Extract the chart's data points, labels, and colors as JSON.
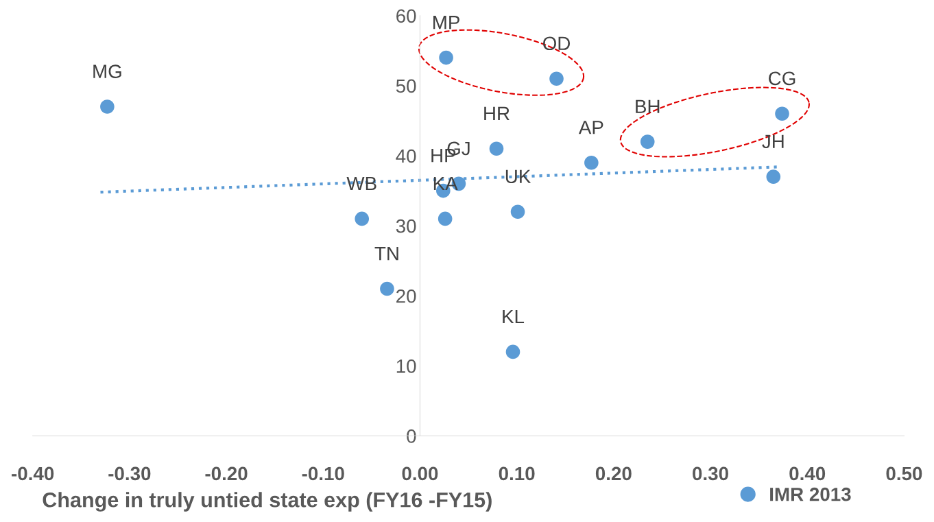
{
  "chart_data": {
    "type": "scatter",
    "xlabel": "Change in truly untied state exp (FY16 -FY15)",
    "xlim": [
      -0.4,
      0.5
    ],
    "xticks": [
      {
        "value": -0.4,
        "label": "-0.40"
      },
      {
        "value": -0.3,
        "label": "-0.30"
      },
      {
        "value": -0.2,
        "label": "-0.20"
      },
      {
        "value": -0.1,
        "label": "-0.10"
      },
      {
        "value": 0,
        "label": "0.00"
      },
      {
        "value": 0.1,
        "label": "0.10"
      },
      {
        "value": 0.2,
        "label": "0.20"
      },
      {
        "value": 0.3,
        "label": "0.30"
      },
      {
        "value": 0.4,
        "label": "0.40"
      },
      {
        "value": 0.5,
        "label": "0.50"
      }
    ],
    "ylim": [
      0,
      60
    ],
    "yticks": [
      0,
      10,
      20,
      30,
      40,
      50,
      60
    ],
    "grid": false,
    "legend": "bottom right",
    "series": [
      {
        "name": "IMR 2013",
        "marker": "circle",
        "color": "#5b9bd5",
        "x": [
          -0.323,
          0.027,
          0.141,
          0.374,
          0.235,
          0.365,
          0.177,
          0.079,
          0.04,
          0.024,
          0.026,
          0.101,
          -0.06,
          -0.034,
          0.096
        ],
        "values": [
          47,
          54,
          51,
          46,
          42,
          37,
          39,
          41,
          36,
          35,
          31,
          32,
          31,
          21,
          12
        ]
      },
      {
        "type": "line",
        "marker": "none",
        "line_style": "dotted",
        "color": "#5b9bd5",
        "x": [
          -0.33,
          0.37
        ],
        "values": [
          34.8,
          38.4
        ]
      }
    ],
    "annotations": [
      {
        "text": "MG",
        "x": -0.323,
        "y": 47
      },
      {
        "text": "MP",
        "x": 0.027,
        "y": 54
      },
      {
        "text": "OD",
        "x": 0.141,
        "y": 51
      },
      {
        "text": "CG",
        "x": 0.374,
        "y": 46
      },
      {
        "text": "BH",
        "x": 0.235,
        "y": 42
      },
      {
        "text": "JH",
        "x": 0.365,
        "y": 37
      },
      {
        "text": "AP",
        "x": 0.177,
        "y": 39
      },
      {
        "text": "HR",
        "x": 0.079,
        "y": 41
      },
      {
        "text": "GJ",
        "x": 0.04,
        "y": 36
      },
      {
        "text": "HP",
        "x": 0.024,
        "y": 35
      },
      {
        "text": "KA",
        "x": 0.026,
        "y": 31
      },
      {
        "text": "UK",
        "x": 0.101,
        "y": 32
      },
      {
        "text": "WB",
        "x": -0.06,
        "y": 31
      },
      {
        "text": "TN",
        "x": -0.034,
        "y": 21
      },
      {
        "text": "KL",
        "x": 0.096,
        "y": 12
      }
    ]
  }
}
